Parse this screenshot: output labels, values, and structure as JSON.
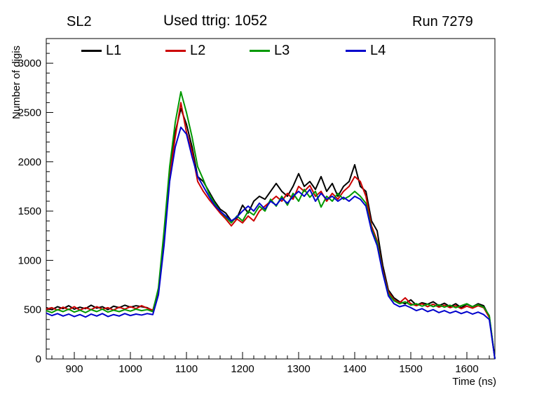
{
  "titles": {
    "left": "SL2",
    "center": "Used ttrig: 1052",
    "right": "Run 7279"
  },
  "chart_data": {
    "type": "line",
    "title": "Used ttrig: 1052",
    "subtitle_left": "SL2",
    "subtitle_right": "Run 7279",
    "xlabel": "Time (ns)",
    "ylabel": "Number of digis",
    "xlim": [
      850,
      1650
    ],
    "ylim": [
      0,
      3250
    ],
    "x_ticks": [
      900,
      1000,
      1100,
      1200,
      1300,
      1400,
      1500,
      1600
    ],
    "y_ticks": [
      0,
      500,
      1000,
      1500,
      2000,
      2500,
      3000
    ],
    "grid": false,
    "legend_position": "top",
    "x": [
      850,
      860,
      870,
      880,
      890,
      900,
      910,
      920,
      930,
      940,
      950,
      960,
      970,
      980,
      990,
      1000,
      1010,
      1020,
      1030,
      1040,
      1050,
      1060,
      1070,
      1080,
      1090,
      1100,
      1110,
      1120,
      1130,
      1140,
      1150,
      1160,
      1170,
      1180,
      1190,
      1200,
      1210,
      1220,
      1230,
      1240,
      1250,
      1260,
      1270,
      1280,
      1290,
      1300,
      1310,
      1320,
      1330,
      1340,
      1350,
      1360,
      1370,
      1380,
      1390,
      1400,
      1410,
      1420,
      1430,
      1440,
      1450,
      1460,
      1470,
      1480,
      1490,
      1500,
      1510,
      1520,
      1530,
      1540,
      1550,
      1560,
      1570,
      1580,
      1590,
      1600,
      1610,
      1620,
      1630,
      1640,
      1650
    ],
    "series": [
      {
        "name": "L1",
        "color": "#000000",
        "values": [
          520,
          500,
          530,
          510,
          540,
          505,
          525,
          510,
          545,
          515,
          530,
          500,
          535,
          520,
          545,
          525,
          540,
          530,
          520,
          490,
          700,
          1250,
          1900,
          2300,
          2540,
          2380,
          2150,
          1850,
          1800,
          1700,
          1600,
          1520,
          1480,
          1400,
          1430,
          1560,
          1480,
          1600,
          1650,
          1620,
          1700,
          1780,
          1700,
          1650,
          1750,
          1880,
          1750,
          1800,
          1720,
          1850,
          1700,
          1780,
          1650,
          1750,
          1800,
          1970,
          1750,
          1700,
          1400,
          1300,
          950,
          700,
          620,
          580,
          560,
          600,
          545,
          570,
          555,
          580,
          540,
          565,
          530,
          560,
          520,
          555,
          530,
          560,
          540,
          430,
          0
        ]
      },
      {
        "name": "L2",
        "color": "#cc0000",
        "values": [
          505,
          520,
          495,
          525,
          500,
          530,
          495,
          520,
          500,
          530,
          505,
          520,
          495,
          525,
          505,
          530,
          510,
          540,
          515,
          495,
          680,
          1200,
          1850,
          2250,
          2600,
          2300,
          2100,
          1800,
          1700,
          1620,
          1550,
          1480,
          1420,
          1350,
          1420,
          1380,
          1450,
          1400,
          1500,
          1550,
          1600,
          1650,
          1600,
          1680,
          1620,
          1750,
          1700,
          1760,
          1650,
          1700,
          1600,
          1680,
          1620,
          1700,
          1750,
          1850,
          1800,
          1650,
          1350,
          1200,
          900,
          680,
          600,
          570,
          620,
          560,
          540,
          560,
          530,
          555,
          525,
          545,
          520,
          540,
          510,
          535,
          515,
          540,
          520,
          420,
          0
        ]
      },
      {
        "name": "L3",
        "color": "#009900",
        "values": [
          490,
          470,
          500,
          480,
          505,
          475,
          495,
          470,
          500,
          480,
          505,
          475,
          495,
          480,
          500,
          485,
          505,
          490,
          500,
          480,
          720,
          1300,
          1950,
          2400,
          2710,
          2500,
          2250,
          1950,
          1820,
          1680,
          1580,
          1500,
          1440,
          1380,
          1450,
          1400,
          1500,
          1460,
          1550,
          1500,
          1620,
          1550,
          1650,
          1560,
          1680,
          1600,
          1720,
          1640,
          1700,
          1540,
          1650,
          1600,
          1680,
          1620,
          1650,
          1700,
          1650,
          1580,
          1320,
          1180,
          880,
          660,
          590,
          560,
          580,
          545,
          560,
          535,
          555,
          530,
          550,
          525,
          545,
          520,
          540,
          560,
          530,
          550,
          525,
          440,
          0
        ]
      },
      {
        "name": "L4",
        "color": "#0000cc",
        "values": [
          465,
          440,
          460,
          435,
          455,
          430,
          450,
          425,
          455,
          435,
          460,
          430,
          450,
          435,
          460,
          440,
          455,
          445,
          460,
          450,
          650,
          1150,
          1800,
          2150,
          2350,
          2280,
          2050,
          1850,
          1750,
          1650,
          1560,
          1500,
          1450,
          1400,
          1440,
          1500,
          1550,
          1500,
          1580,
          1520,
          1600,
          1560,
          1630,
          1580,
          1650,
          1700,
          1650,
          1720,
          1600,
          1680,
          1620,
          1650,
          1600,
          1640,
          1600,
          1650,
          1620,
          1550,
          1300,
          1150,
          870,
          640,
          560,
          530,
          545,
          520,
          490,
          510,
          480,
          500,
          470,
          490,
          465,
          485,
          460,
          480,
          455,
          475,
          450,
          400,
          0
        ]
      }
    ]
  }
}
